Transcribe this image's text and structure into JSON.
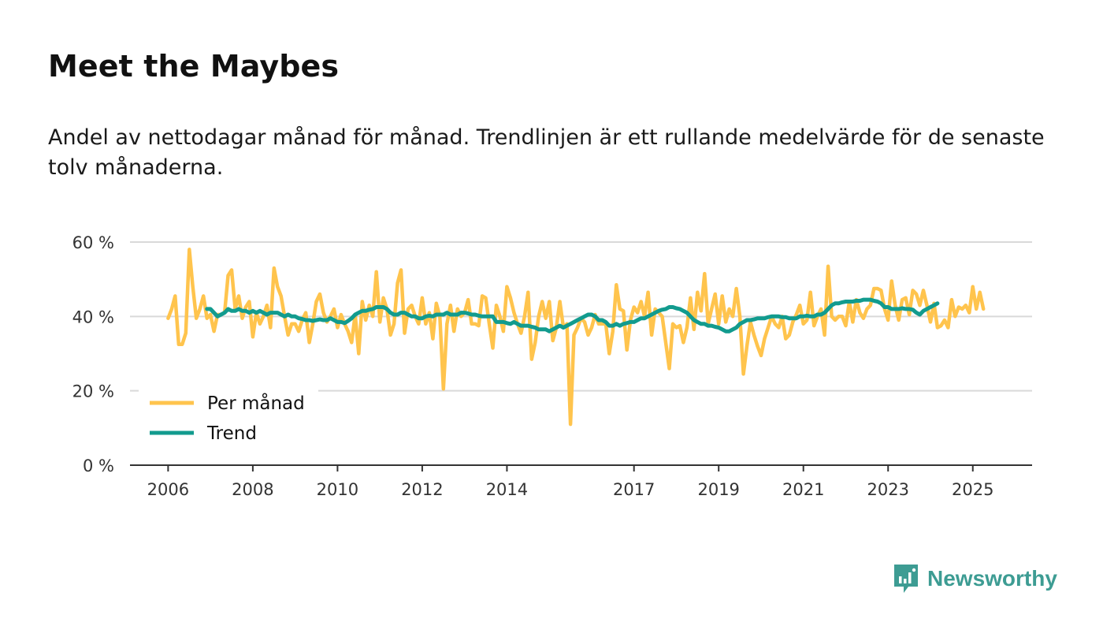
{
  "title": "Meet the Maybes",
  "subtitle": "Andel av nettodagar månad för månad. Trendlinjen är ett rullande medelvärde för de senaste tolv månaderna.",
  "brand": {
    "name": "Newsworthy",
    "color": "#3d9c93"
  },
  "colors": {
    "monthly": "#ffc44d",
    "trend": "#129b8e",
    "grid": "#d9d9d9",
    "axis": "#333333"
  },
  "chart_data": {
    "type": "line",
    "title": "Meet the Maybes",
    "xlabel": "",
    "ylabel": "",
    "ylim": [
      0,
      60
    ],
    "yticks": [
      0,
      20,
      40,
      60
    ],
    "ytick_labels": [
      "0 %",
      "20 %",
      "40 %",
      "60 %"
    ],
    "xlim": [
      2005.1,
      2026.4
    ],
    "xticks": [
      2006,
      2008,
      2010,
      2012,
      2014,
      2017,
      2019,
      2021,
      2023,
      2025
    ],
    "xtick_labels": [
      "2006",
      "2008",
      "2010",
      "2012",
      "2014",
      "2017",
      "2019",
      "2021",
      "2023",
      "2025"
    ],
    "legend": {
      "position": "bottom-left",
      "entries": [
        "Per månad",
        "Trend"
      ]
    },
    "series": [
      {
        "name": "Per månad",
        "start": 2006.0,
        "step": 0.0833333,
        "values": [
          39.5,
          42,
          45.5,
          32.5,
          32.5,
          35.5,
          58,
          48,
          39.5,
          42,
          45.5,
          39.5,
          40.5,
          36,
          40.5,
          40.5,
          41,
          51,
          52.5,
          42,
          45.5,
          39.5,
          42.5,
          44,
          34.5,
          41,
          38,
          40,
          43,
          37,
          53,
          48,
          45.5,
          40,
          35,
          38,
          38,
          36,
          39,
          41,
          33,
          38,
          44,
          46,
          41,
          38.5,
          40,
          42,
          37,
          40.5,
          38,
          36,
          33,
          40.5,
          30,
          44,
          39,
          43,
          40,
          52,
          38.5,
          45,
          42,
          35,
          38,
          49,
          52.5,
          35.5,
          42,
          43,
          40,
          38,
          45,
          38,
          41,
          34,
          43.5,
          40,
          20.5,
          38,
          43,
          36,
          42,
          40,
          41,
          44.5,
          38,
          38,
          37.5,
          45.5,
          45,
          38,
          31.5,
          43,
          40,
          36,
          48,
          45,
          41,
          38,
          35.5,
          40,
          46.5,
          28.5,
          33,
          40,
          44,
          39.5,
          44,
          33.5,
          37,
          44,
          37,
          38,
          11,
          35,
          37,
          39.5,
          38.5,
          35,
          37,
          40.5,
          38,
          38,
          38,
          30,
          36,
          48.5,
          42,
          41.5,
          31,
          39,
          42.5,
          41,
          44,
          40,
          46.5,
          35,
          42,
          41,
          40,
          33,
          26,
          38,
          37,
          37.5,
          33,
          37,
          45,
          36.5,
          46.5,
          41.5,
          51.5,
          38,
          42,
          46,
          38,
          45.5,
          38.5,
          42,
          40,
          47.5,
          40,
          24.5,
          32,
          38.5,
          35,
          32,
          29.5,
          34,
          37,
          40,
          38,
          37,
          40,
          34,
          35,
          38.5,
          40.5,
          43,
          38,
          39,
          46.5,
          37.5,
          40,
          42,
          35,
          53.5,
          40,
          39,
          40,
          40,
          37.5,
          44,
          38.5,
          44.5,
          41,
          39.5,
          42,
          43,
          47.5,
          47.5,
          47,
          42,
          39,
          49.5,
          43,
          39,
          44.5,
          45,
          40.5,
          47,
          46,
          43,
          47,
          43,
          38.5,
          43.5,
          37,
          37.5,
          39,
          37,
          44.5,
          40,
          42.5,
          42,
          43,
          41,
          48,
          42,
          46.5,
          42
        ]
      },
      {
        "name": "Trend",
        "start": 2006.9167,
        "step": 0.0833333,
        "values": [
          42,
          42,
          41,
          40,
          40.5,
          41,
          42,
          41.5,
          41.5,
          42,
          41.5,
          41.5,
          41,
          41.5,
          41,
          41.5,
          41,
          40.5,
          41,
          41,
          41,
          40.5,
          40,
          40.5,
          40,
          40,
          39.5,
          39.3,
          39,
          39,
          38.8,
          39,
          39.2,
          39,
          39,
          39.5,
          39,
          38.5,
          38.5,
          38.2,
          38.8,
          39.5,
          40.5,
          41,
          41.5,
          41.5,
          41.8,
          42,
          42.5,
          42.5,
          42.5,
          42,
          41,
          40.5,
          40.5,
          41,
          41,
          40.5,
          40,
          40,
          39.5,
          39.5,
          40,
          40.2,
          40,
          40.5,
          40.5,
          40.5,
          41,
          40.5,
          40.5,
          40.5,
          41,
          41,
          40.8,
          40.5,
          40.5,
          40.2,
          40,
          40,
          40,
          40,
          38.5,
          38.5,
          38.5,
          38.2,
          38,
          38.5,
          38,
          37.5,
          37.5,
          37.5,
          37.2,
          37,
          36.5,
          36.5,
          36.5,
          36,
          36.5,
          37,
          37.5,
          37,
          37.5,
          38,
          38.5,
          39,
          39.5,
          40,
          40.5,
          40.5,
          40,
          39,
          39,
          38.5,
          37.5,
          37.5,
          38,
          37.5,
          38,
          38.2,
          38.5,
          38.5,
          39,
          39.5,
          39.5,
          40,
          40.5,
          41,
          41.5,
          41.8,
          42,
          42.5,
          42.5,
          42.2,
          42,
          41.5,
          41,
          40,
          39,
          38.5,
          38,
          38,
          37.5,
          37.5,
          37.2,
          37,
          36.5,
          36,
          36,
          36.5,
          37,
          38,
          38.5,
          39,
          39,
          39.2,
          39.5,
          39.5,
          39.5,
          39.8,
          40,
          40,
          40,
          39.8,
          39.8,
          39.5,
          39.5,
          39.5,
          40,
          40,
          40.2,
          40,
          40,
          40.5,
          40.5,
          41,
          42,
          43,
          43.5,
          43.5,
          43.8,
          44,
          44,
          44,
          44.2,
          44.2,
          44.5,
          44.5,
          44.5,
          44.2,
          44,
          43.5,
          42.5,
          42.5,
          42,
          42,
          42,
          42.2,
          42,
          42,
          41.8,
          41,
          40.5,
          41.5,
          42,
          42.5,
          43,
          43.5
        ]
      }
    ]
  }
}
